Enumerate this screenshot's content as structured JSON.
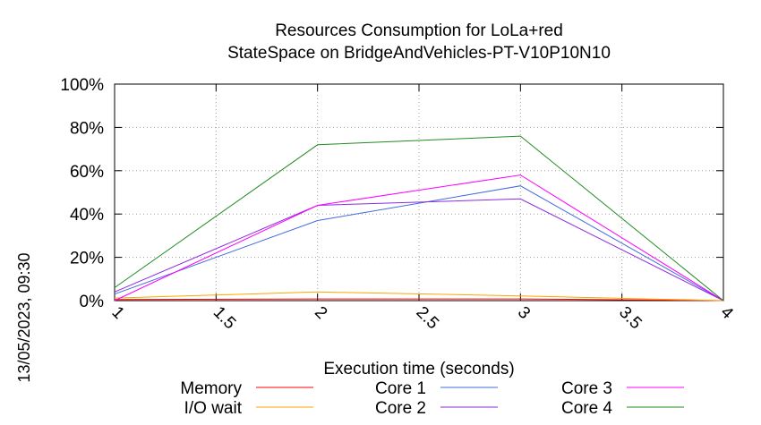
{
  "chart_data": {
    "type": "line",
    "title": "Resources Consumption for LoLa+red",
    "subtitle": "StateSpace on BridgeAndVehicles-PT-V10P10N10",
    "xlabel": "Execution time (seconds)",
    "ylabel": "",
    "timestamp": "13/05/2023, 09:30",
    "xlim": [
      1,
      4
    ],
    "ylim": [
      0,
      100
    ],
    "x_ticks": [
      "1",
      "1.5",
      "2",
      "2.5",
      "3",
      "3.5",
      "4"
    ],
    "y_ticks": [
      "0%",
      "20%",
      "40%",
      "60%",
      "80%",
      "100%"
    ],
    "grid": true,
    "legend_position": "bottom",
    "series": [
      {
        "name": "Memory",
        "color": "#ff0000",
        "x": [
          1,
          2,
          3,
          4
        ],
        "y": [
          0.5,
          0.8,
          0.8,
          0
        ]
      },
      {
        "name": "I/O wait",
        "color": "#ffa500",
        "x": [
          1,
          2,
          3,
          4
        ],
        "y": [
          1.2,
          4,
          2.2,
          0
        ]
      },
      {
        "name": "Core 1",
        "color": "#4169e1",
        "x": [
          1,
          2,
          3,
          4
        ],
        "y": [
          3,
          37,
          53,
          0
        ]
      },
      {
        "name": "Core 2",
        "color": "#8a2be2",
        "x": [
          1,
          2,
          3,
          4
        ],
        "y": [
          4,
          44,
          47,
          0
        ]
      },
      {
        "name": "Core 3",
        "color": "#ff00ff",
        "x": [
          1,
          2,
          3,
          4
        ],
        "y": [
          0,
          44,
          58,
          0
        ]
      },
      {
        "name": "Core 4",
        "color": "#228b22",
        "x": [
          1,
          2,
          3,
          4
        ],
        "y": [
          6,
          72,
          76,
          0
        ]
      }
    ]
  }
}
